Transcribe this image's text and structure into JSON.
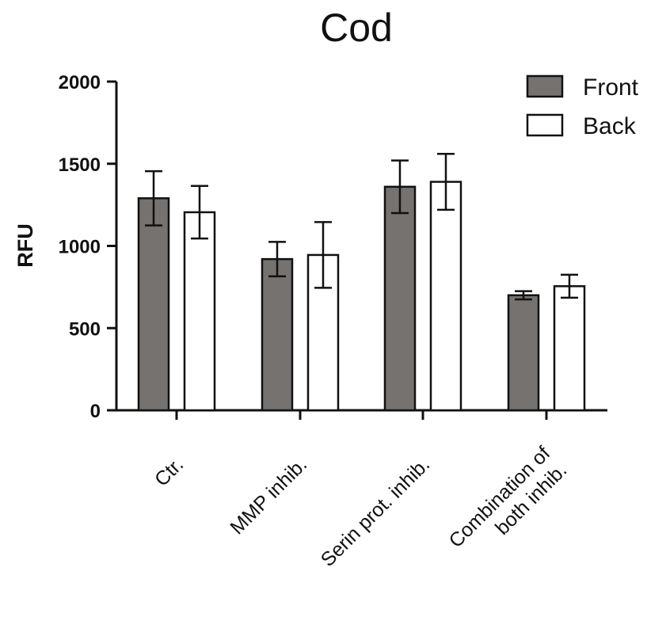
{
  "chart_data": {
    "type": "bar",
    "title": "Cod",
    "xlabel": "",
    "ylabel": "RFU",
    "ylim": [
      0,
      2000
    ],
    "yticks": [
      0,
      500,
      1000,
      1500,
      2000
    ],
    "grid": false,
    "legend_position": "top-right",
    "categories": [
      [
        "Ctr."
      ],
      [
        "MMP inhib."
      ],
      [
        "Serin prot. inhib."
      ],
      [
        "Combination of",
        "both inhib."
      ]
    ],
    "series": [
      {
        "name": "Front",
        "color": "#767270",
        "values": [
          1290,
          920,
          1360,
          700
        ],
        "errors": [
          165,
          105,
          160,
          25
        ]
      },
      {
        "name": "Back",
        "color": "#ffffff",
        "values": [
          1205,
          945,
          1390,
          755
        ],
        "errors": [
          160,
          200,
          170,
          70
        ]
      }
    ]
  }
}
